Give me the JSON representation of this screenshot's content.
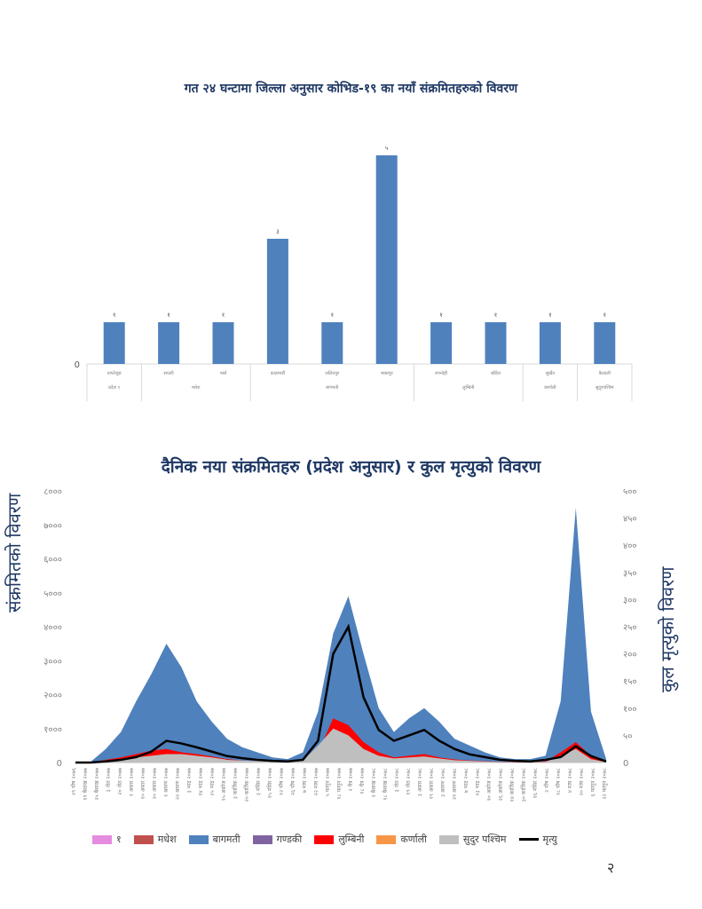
{
  "page": {
    "number": "२"
  },
  "chart_data": [
    {
      "type": "bar",
      "title": "गत २४ घन्टामा जिल्ला अनुसार कोभिड-१९ का नयाँ संक्रमितहरुको विवरण",
      "y_zero_label": "0",
      "categories": [
        "ताप्लेजुङ",
        "सप्तरी",
        "पर्सा",
        "काठमाडौं",
        "ललितपुर",
        "भक्तपुर",
        "रुपन्देही",
        "बर्दिया",
        "सुर्खेत",
        "कैलाली"
      ],
      "values": [
        1,
        1,
        1,
        3,
        1,
        5,
        1,
        1,
        1,
        1
      ],
      "data_labels": [
        "१",
        "१",
        "१",
        "३",
        "१",
        "५",
        "१",
        "१",
        "१",
        "१"
      ],
      "groups": [
        {
          "name": "प्रदेश १",
          "count": 1
        },
        {
          "name": "मधेश",
          "count": 2
        },
        {
          "name": "बागमती",
          "count": 3
        },
        {
          "name": "लुम्बिनी",
          "count": 2
        },
        {
          "name": "कर्णाली",
          "count": 1
        },
        {
          "name": "सुदूरपश्चिम",
          "count": 1
        }
      ],
      "ylim": [
        0,
        5
      ],
      "color": "#4f81bd"
    },
    {
      "type": "area",
      "title": "दैनिक नया संक्रमितहरु (प्रदेश अनुसार) र कुल मृत्युको विवरण",
      "ylabel": "संक्रमितको विवरण",
      "y2label": "कुल मृत्युको विवरण",
      "ylim": [
        0,
        8000
      ],
      "y2lim": [
        0,
        500
      ],
      "y_ticks": [
        "0",
        "१०००",
        "२०००",
        "३०००",
        "४०००",
        "५०००",
        "६०००",
        "७०००",
        "८०००"
      ],
      "y2_ticks": [
        "0",
        "५०",
        "१००",
        "१५०",
        "२००",
        "२५०",
        "३००",
        "३५०",
        "४००",
        "४५०",
        "५००"
      ],
      "x_ticks": [
        "२९ पौष २०७६",
        "१९ बैशाख २०७७",
        "२५ बैशाख २०७७",
        "३ जेठ २०७७",
        "२० जेठ २०७७",
        "१ असार २०७७",
        "१० असार २०७७",
        "२० असार २०७७",
        "१ श्रावण २०७७",
        "२२ श्रावण २०७७",
        "३ भाद्र २०७७",
        "१४ भाद्र २०७७",
        "२५ भाद्र २०७७",
        "१५ असोज २०७७",
        "३ कार्तिक २०७७",
        "२० कार्तिक २०७७",
        "३ मंसिर २०७७",
        "१५ मंसिर २०७७",
        "१२ पौष २०७७",
        "२६ पौष २०७७",
        "७ माघ २०७७",
        "२२ माघ २०७७",
        "५ फागुन २०७७",
        "१८ फागुन २०७७",
        "२ चैत्र २०७७",
        "१८ चैत्र २०७७",
        "२ बैशाख २०७८",
        "१८ बैशाख २०७८",
        "३ जेठ २०७८",
        "१९ जेठ २०७८",
        "३ असार २०७८",
        "१९ असार २०७८",
        "३ श्रावण २०७८",
        "२१ श्रावण २०७८",
        "७ भाद्र २०७८",
        "२३ भाद्र २०७८",
        "१० असोज २०७८",
        "२६ असोज २०७८",
        "१४ कार्तिक २०७८",
        "३० कार्तिक २०७८",
        "१६ मंसिर २०७८",
        "२ पौष २०७८",
        "१८ पौष २०७८",
        "४ माघ २०७८",
        "२० माघ २०७८",
        "६ फागुन २०७८",
        "२२ फागुन २०७८"
      ],
      "approximate_daily": {
        "dates_sampled_index": [
          0,
          5,
          10,
          12,
          14,
          16,
          17,
          18,
          19,
          20,
          21,
          22,
          23,
          24,
          25,
          26,
          27,
          28,
          29,
          30,
          31,
          32,
          33,
          34,
          35,
          36,
          37,
          38,
          39,
          40,
          41,
          42,
          43,
          44,
          45,
          46
        ],
        "total": [
          0,
          20,
          400,
          900,
          1800,
          2600,
          3500,
          2800,
          1800,
          1200,
          700,
          450,
          300,
          150,
          100,
          300,
          1500,
          3800,
          4900,
          3200,
          1600,
          900,
          1300,
          1600,
          1200,
          700,
          500,
          300,
          150,
          100,
          100,
          200,
          1800,
          7500,
          1500,
          100
        ],
        "lumbini": [
          0,
          5,
          80,
          150,
          250,
          350,
          400,
          300,
          250,
          180,
          100,
          60,
          40,
          20,
          15,
          40,
          300,
          1300,
          1100,
          600,
          300,
          150,
          200,
          250,
          150,
          90,
          60,
          40,
          20,
          15,
          15,
          30,
          300,
          600,
          200,
          20
        ],
        "sudurpashchim": [
          0,
          2,
          40,
          80,
          150,
          200,
          250,
          250,
          200,
          150,
          80,
          60,
          40,
          20,
          15,
          50,
          500,
          1000,
          800,
          400,
          200,
          120,
          150,
          180,
          120,
          70,
          50,
          30,
          15,
          10,
          10,
          20,
          200,
          400,
          100,
          10
        ],
        "deaths": [
          0,
          0,
          2,
          5,
          10,
          20,
          40,
          35,
          28,
          20,
          12,
          8,
          5,
          3,
          2,
          5,
          40,
          200,
          250,
          120,
          60,
          40,
          50,
          60,
          40,
          25,
          15,
          10,
          5,
          3,
          2,
          5,
          10,
          30,
          12,
          2
        ]
      },
      "legend": [
        {
          "name": "१",
          "color": "#e58be0"
        },
        {
          "name": "मधेश",
          "color": "#c0504d"
        },
        {
          "name": "बागमती",
          "color": "#4f81bd"
        },
        {
          "name": "गण्डकी",
          "color": "#8064a2"
        },
        {
          "name": "लुम्बिनी",
          "color": "#ff0000"
        },
        {
          "name": "कर्णाली",
          "color": "#f79646"
        },
        {
          "name": "सुदुर पश्चिम",
          "color": "#bfbfbf"
        },
        {
          "name": "मृत्यु",
          "color": "#000000"
        }
      ]
    }
  ]
}
